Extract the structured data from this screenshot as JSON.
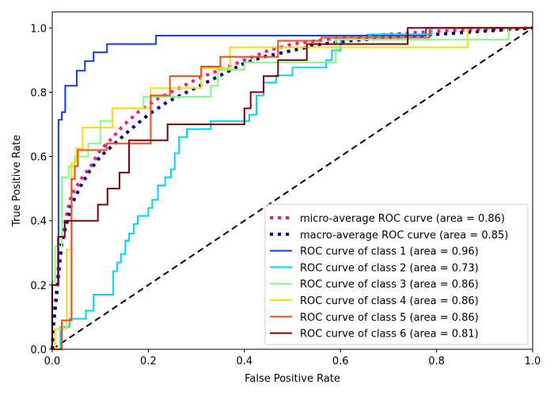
{
  "chart_data": {
    "type": "line",
    "title": "",
    "xlabel": "False Positive Rate",
    "ylabel": "True Positive Rate",
    "xlim": [
      0.0,
      1.0
    ],
    "ylim": [
      0.0,
      1.05
    ],
    "xticks": [
      "0.0",
      "0.2",
      "0.4",
      "0.6",
      "0.8",
      "1.0"
    ],
    "yticks": [
      "0.0",
      "0.2",
      "0.4",
      "0.6",
      "0.8",
      "1.0"
    ],
    "grid": false,
    "legend_position": "lower-right",
    "series": [
      {
        "name": "micro-average ROC curve (area = 0.86)",
        "color": "#ff1493",
        "style": "dotted",
        "x": [
          0.0,
          0.003,
          0.01,
          0.015,
          0.02,
          0.03,
          0.04,
          0.06,
          0.08,
          0.1,
          0.12,
          0.15,
          0.18,
          0.22,
          0.26,
          0.3,
          0.35,
          0.4,
          0.45,
          0.5,
          0.55,
          0.6,
          0.7,
          0.8,
          0.9,
          1.0
        ],
        "y": [
          0.0,
          0.1,
          0.2,
          0.3,
          0.34,
          0.42,
          0.48,
          0.53,
          0.57,
          0.62,
          0.65,
          0.7,
          0.74,
          0.78,
          0.81,
          0.84,
          0.87,
          0.9,
          0.93,
          0.95,
          0.96,
          0.97,
          0.98,
          0.99,
          0.995,
          1.0
        ]
      },
      {
        "name": "macro-average ROC curve (area = 0.85)",
        "color": "#000080",
        "style": "dotted",
        "x": [
          0.0,
          0.003,
          0.01,
          0.015,
          0.02,
          0.03,
          0.04,
          0.06,
          0.08,
          0.1,
          0.13,
          0.16,
          0.2,
          0.24,
          0.28,
          0.32,
          0.36,
          0.4,
          0.44,
          0.5,
          0.56,
          0.62,
          0.7,
          0.8,
          0.9,
          1.0
        ],
        "y": [
          0.0,
          0.08,
          0.18,
          0.26,
          0.33,
          0.39,
          0.45,
          0.51,
          0.56,
          0.6,
          0.64,
          0.68,
          0.73,
          0.77,
          0.8,
          0.83,
          0.86,
          0.89,
          0.91,
          0.93,
          0.95,
          0.96,
          0.97,
          0.98,
          0.99,
          1.0
        ]
      },
      {
        "name": "ROC curve of class 1 (area = 0.96)",
        "color": "#0f3cff",
        "style": "solid",
        "x": [
          0.0,
          0.0,
          0.013,
          0.013,
          0.02,
          0.02,
          0.027,
          0.027,
          0.051,
          0.051,
          0.068,
          0.068,
          0.086,
          0.086,
          0.114,
          0.114,
          0.216,
          0.216,
          0.778,
          0.778,
          1.0
        ],
        "y": [
          0.0,
          0.2,
          0.2,
          0.714,
          0.714,
          0.738,
          0.738,
          0.82,
          0.82,
          0.867,
          0.867,
          0.897,
          0.897,
          0.924,
          0.924,
          0.95,
          0.95,
          0.976,
          0.976,
          1.0,
          1.0
        ]
      },
      {
        "name": "ROC curve of class 2 (area = 0.73)",
        "color": "#00d5ff",
        "style": "solid",
        "x": [
          0.0,
          0.0,
          0.017,
          0.017,
          0.036,
          0.036,
          0.07,
          0.07,
          0.086,
          0.086,
          0.127,
          0.127,
          0.135,
          0.135,
          0.143,
          0.143,
          0.152,
          0.152,
          0.16,
          0.16,
          0.17,
          0.17,
          0.178,
          0.178,
          0.2,
          0.2,
          0.208,
          0.208,
          0.22,
          0.22,
          0.235,
          0.235,
          0.247,
          0.247,
          0.255,
          0.255,
          0.264,
          0.264,
          0.28,
          0.28,
          0.33,
          0.33,
          0.41,
          0.41,
          0.425,
          0.425,
          0.44,
          0.44,
          0.466,
          0.466,
          0.5,
          0.5,
          0.57,
          0.57,
          0.582,
          0.582,
          0.6,
          0.6,
          0.66,
          0.66,
          0.79,
          0.79,
          1.0
        ],
        "y": [
          0.0,
          0.0,
          0.0,
          0.07,
          0.07,
          0.095,
          0.095,
          0.12,
          0.12,
          0.17,
          0.17,
          0.243,
          0.243,
          0.27,
          0.27,
          0.296,
          0.296,
          0.338,
          0.338,
          0.36,
          0.36,
          0.39,
          0.39,
          0.415,
          0.415,
          0.44,
          0.44,
          0.465,
          0.465,
          0.51,
          0.51,
          0.535,
          0.535,
          0.56,
          0.56,
          0.61,
          0.61,
          0.66,
          0.66,
          0.685,
          0.685,
          0.71,
          0.71,
          0.73,
          0.73,
          0.79,
          0.79,
          0.83,
          0.83,
          0.852,
          0.852,
          0.877,
          0.877,
          0.9,
          0.9,
          0.93,
          0.93,
          0.97,
          0.97,
          0.98,
          0.98,
          1.0,
          1.0
        ]
      },
      {
        "name": "ROC curve of class 3 (area = 0.86)",
        "color": "#80ff80",
        "style": "solid",
        "x": [
          0.0,
          0.0,
          0.006,
          0.006,
          0.02,
          0.02,
          0.034,
          0.034,
          0.047,
          0.047,
          0.075,
          0.075,
          0.1,
          0.1,
          0.125,
          0.125,
          0.19,
          0.19,
          0.33,
          0.33,
          0.345,
          0.345,
          0.4,
          0.4,
          0.59,
          0.59,
          0.95,
          0.95,
          1.0
        ],
        "y": [
          0.0,
          0.21,
          0.21,
          0.32,
          0.32,
          0.535,
          0.535,
          0.57,
          0.57,
          0.6,
          0.6,
          0.64,
          0.64,
          0.71,
          0.71,
          0.75,
          0.75,
          0.786,
          0.786,
          0.82,
          0.82,
          0.87,
          0.87,
          0.893,
          0.893,
          0.964,
          0.964,
          1.0,
          1.0
        ]
      },
      {
        "name": "ROC curve of class 4 (area = 0.86)",
        "color": "#ffdd00",
        "style": "solid",
        "x": [
          0.0,
          0.0,
          0.006,
          0.006,
          0.03,
          0.03,
          0.04,
          0.04,
          0.05,
          0.05,
          0.063,
          0.063,
          0.125,
          0.125,
          0.205,
          0.205,
          0.31,
          0.31,
          0.37,
          0.37,
          0.865,
          0.865,
          1.0
        ],
        "y": [
          0.0,
          0.0,
          0.0,
          0.063,
          0.063,
          0.31,
          0.31,
          0.58,
          0.58,
          0.625,
          0.625,
          0.69,
          0.69,
          0.75,
          0.75,
          0.813,
          0.813,
          0.875,
          0.875,
          0.94,
          0.94,
          1.0,
          1.0
        ]
      },
      {
        "name": "ROC curve of class 5 (area = 0.86)",
        "color": "#ff4a0a",
        "style": "solid",
        "x": [
          0.0,
          0.0,
          0.02,
          0.02,
          0.04,
          0.04,
          0.047,
          0.047,
          0.053,
          0.053,
          0.113,
          0.113,
          0.205,
          0.205,
          0.245,
          0.245,
          0.31,
          0.31,
          0.35,
          0.35,
          0.47,
          0.47,
          0.56,
          0.56,
          0.785,
          0.785,
          1.0
        ],
        "y": [
          0.0,
          0.0,
          0.0,
          0.09,
          0.09,
          0.53,
          0.53,
          0.57,
          0.57,
          0.62,
          0.62,
          0.64,
          0.64,
          0.79,
          0.79,
          0.85,
          0.85,
          0.88,
          0.88,
          0.91,
          0.91,
          0.96,
          0.96,
          0.97,
          0.97,
          1.0,
          1.0
        ]
      },
      {
        "name": "ROC curve of class 6 (area = 0.81)",
        "color": "#7f0000",
        "style": "solid",
        "x": [
          0.0,
          0.0,
          0.012,
          0.012,
          0.026,
          0.026,
          0.095,
          0.095,
          0.115,
          0.115,
          0.14,
          0.14,
          0.16,
          0.16,
          0.24,
          0.24,
          0.4,
          0.4,
          0.413,
          0.413,
          0.44,
          0.44,
          0.47,
          0.47,
          0.53,
          0.53,
          0.74,
          0.74,
          1.0
        ],
        "y": [
          0.0,
          0.2,
          0.2,
          0.35,
          0.35,
          0.4,
          0.4,
          0.45,
          0.45,
          0.5,
          0.5,
          0.55,
          0.55,
          0.65,
          0.65,
          0.7,
          0.7,
          0.75,
          0.75,
          0.8,
          0.8,
          0.85,
          0.85,
          0.9,
          0.9,
          0.95,
          0.95,
          1.0,
          1.0
        ]
      },
      {
        "name": "chance",
        "color": "#000000",
        "style": "dashed",
        "legend": false,
        "x": [
          0.0,
          1.0
        ],
        "y": [
          0.0,
          1.0
        ]
      }
    ]
  }
}
